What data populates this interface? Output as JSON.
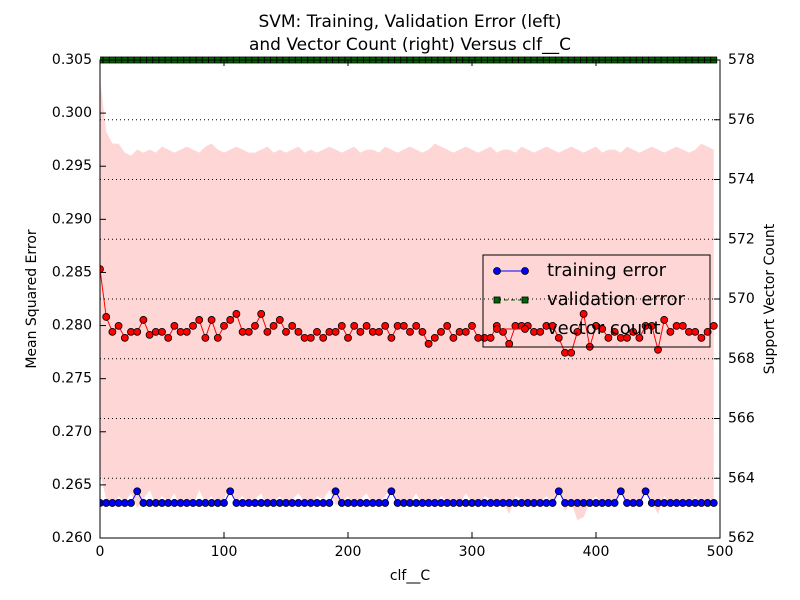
{
  "chart_data": {
    "type": "line",
    "title": [
      "SVM: Training, Validation Error (left)",
      "and Vector Count (right) Versus clf__C"
    ],
    "xlabel": "clf__C",
    "ylabel": "Mean Squared Error",
    "y2label": "Support Vector Count",
    "xlim": [
      0,
      500
    ],
    "xticks": [
      0,
      100,
      200,
      300,
      400,
      500
    ],
    "ylim": [
      0.26,
      0.305
    ],
    "yticks": [
      {
        "value": 0.26,
        "label": "0.260"
      },
      0.265,
      {
        "value": 0.27,
        "label": "0.270"
      },
      0.275,
      {
        "value": 0.28,
        "label": "0.280"
      },
      0.285,
      {
        "value": 0.29,
        "label": "0.290"
      },
      0.295,
      {
        "value": 0.3,
        "label": "0.300"
      },
      0.305
    ],
    "y2lim": [
      562,
      578
    ],
    "y2ticks": [
      562,
      564,
      566,
      568,
      570,
      572,
      574,
      576,
      578
    ],
    "grid": "y2",
    "legend": "center right",
    "x": [
      0,
      5,
      10,
      15,
      20,
      25,
      30,
      35,
      40,
      45,
      50,
      55,
      60,
      65,
      70,
      75,
      80,
      85,
      90,
      95,
      100,
      105,
      110,
      115,
      120,
      125,
      130,
      135,
      140,
      145,
      150,
      155,
      160,
      165,
      170,
      175,
      180,
      185,
      190,
      195,
      200,
      205,
      210,
      215,
      220,
      225,
      230,
      235,
      240,
      245,
      250,
      255,
      260,
      265,
      270,
      275,
      280,
      285,
      290,
      295,
      300,
      305,
      310,
      315,
      320,
      325,
      330,
      335,
      340,
      345,
      350,
      355,
      360,
      365,
      370,
      375,
      380,
      385,
      390,
      395,
      400,
      405,
      410,
      415,
      420,
      425,
      430,
      435,
      440,
      445,
      450,
      455,
      460,
      465,
      470,
      475,
      480,
      485,
      490,
      495
    ],
    "series": [
      {
        "name": "training error",
        "color": "#0000ff",
        "marker": "circle",
        "axis": "y",
        "values": [
          0.2633,
          0.2633,
          0.2633,
          0.2633,
          0.2633,
          0.2633,
          0.2644,
          0.2633,
          0.2633,
          0.2633,
          0.2633,
          0.2633,
          0.2633,
          0.2633,
          0.2633,
          0.2633,
          0.2633,
          0.2633,
          0.2633,
          0.2633,
          0.2633,
          0.2644,
          0.2633,
          0.2633,
          0.2633,
          0.2633,
          0.2633,
          0.2633,
          0.2633,
          0.2633,
          0.2633,
          0.2633,
          0.2633,
          0.2633,
          0.2633,
          0.2633,
          0.2633,
          0.2633,
          0.2644,
          0.2633,
          0.2633,
          0.2633,
          0.2633,
          0.2633,
          0.2633,
          0.2633,
          0.2633,
          0.2644,
          0.2633,
          0.2633,
          0.2633,
          0.2633,
          0.2633,
          0.2633,
          0.2633,
          0.2633,
          0.2633,
          0.2633,
          0.2633,
          0.2633,
          0.2633,
          0.2633,
          0.2633,
          0.2633,
          0.2633,
          0.2633,
          0.2633,
          0.2633,
          0.2633,
          0.2633,
          0.2633,
          0.2633,
          0.2633,
          0.2633,
          0.2644,
          0.2633,
          0.2633,
          0.2633,
          0.2633,
          0.2633,
          0.2633,
          0.2633,
          0.2633,
          0.2633,
          0.2644,
          0.2633,
          0.2633,
          0.2633,
          0.2644,
          0.2633,
          0.2633,
          0.2633,
          0.2633,
          0.2633,
          0.2633,
          0.2633,
          0.2633,
          0.2633,
          0.2633,
          0.2633
        ]
      },
      {
        "name": "validation error",
        "color": "#006400",
        "marker": "square",
        "axis": "y",
        "values": [
          0.305,
          0.305,
          0.305,
          0.305,
          0.305,
          0.305,
          0.305,
          0.305,
          0.305,
          0.305,
          0.305,
          0.305,
          0.305,
          0.305,
          0.305,
          0.305,
          0.305,
          0.305,
          0.305,
          0.305,
          0.305,
          0.305,
          0.305,
          0.305,
          0.305,
          0.305,
          0.305,
          0.305,
          0.305,
          0.305,
          0.305,
          0.305,
          0.305,
          0.305,
          0.305,
          0.305,
          0.305,
          0.305,
          0.305,
          0.305,
          0.305,
          0.305,
          0.305,
          0.305,
          0.305,
          0.305,
          0.305,
          0.305,
          0.305,
          0.305,
          0.305,
          0.305,
          0.305,
          0.305,
          0.305,
          0.305,
          0.305,
          0.305,
          0.305,
          0.305,
          0.305,
          0.305,
          0.305,
          0.305,
          0.305,
          0.305,
          0.305,
          0.305,
          0.305,
          0.305,
          0.305,
          0.305,
          0.305,
          0.305,
          0.305,
          0.305,
          0.305,
          0.305,
          0.305,
          0.305,
          0.305,
          0.305,
          0.305,
          0.305,
          0.305,
          0.305,
          0.305,
          0.305,
          0.305,
          0.305,
          0.305,
          0.305,
          0.305,
          0.305,
          0.305,
          0.305,
          0.305,
          0.305,
          0.305,
          0.305
        ]
      },
      {
        "name": "vector count",
        "color": "#ff0000",
        "marker": "circle",
        "axis": "y2",
        "band_color": "#ffd6d6",
        "values": [
          571.0,
          569.4,
          568.9,
          569.1,
          568.7,
          568.9,
          568.9,
          569.3,
          568.8,
          568.9,
          568.9,
          568.7,
          569.1,
          568.9,
          568.9,
          569.1,
          569.3,
          568.7,
          569.3,
          568.7,
          569.1,
          569.3,
          569.5,
          568.9,
          568.9,
          569.1,
          569.5,
          568.9,
          569.1,
          569.3,
          568.9,
          569.1,
          568.9,
          568.7,
          568.7,
          568.9,
          568.7,
          568.9,
          568.9,
          569.1,
          568.7,
          569.1,
          568.9,
          569.1,
          568.9,
          568.9,
          569.1,
          568.7,
          569.1,
          569.1,
          568.9,
          569.1,
          568.9,
          568.5,
          568.7,
          568.9,
          569.1,
          568.7,
          568.9,
          568.9,
          569.1,
          568.7,
          568.7,
          568.7,
          569.1,
          568.9,
          568.5,
          569.1,
          569.1,
          569.1,
          568.9,
          568.9,
          569.1,
          569.1,
          568.7,
          568.2,
          568.2,
          568.9,
          569.5,
          568.4,
          569.1,
          569.0,
          568.7,
          568.9,
          568.7,
          568.7,
          568.9,
          568.7,
          569.1,
          569.1,
          568.3,
          569.3,
          568.9,
          569.1,
          569.1,
          568.9,
          568.9,
          568.7,
          568.9,
          569.1
        ],
        "upper": [
          577.4,
          575.6,
          575.2,
          575.2,
          574.9,
          574.8,
          575.0,
          574.9,
          575.0,
          574.9,
          575.1,
          575.0,
          574.9,
          575.0,
          575.1,
          575.0,
          574.9,
          575.1,
          575.2,
          575.0,
          574.9,
          575.0,
          575.1,
          575.0,
          574.9,
          574.9,
          575.0,
          575.1,
          574.9,
          575.0,
          574.9,
          575.0,
          575.1,
          574.9,
          575.0,
          574.9,
          575.0,
          575.1,
          575.0,
          574.9,
          575.0,
          575.1,
          574.9,
          575.0,
          575.0,
          574.9,
          575.1,
          575.0,
          574.9,
          575.0,
          575.1,
          575.0,
          574.9,
          575.0,
          575.2,
          575.1,
          575.0,
          574.9,
          575.0,
          575.1,
          575.0,
          574.9,
          575.0,
          575.1,
          574.9,
          575.0,
          575.0,
          574.9,
          575.1,
          575.0,
          574.9,
          575.0,
          575.1,
          575.0,
          574.9,
          575.0,
          575.1,
          575.0,
          574.9,
          575.0,
          575.1,
          574.9,
          575.0,
          575.0,
          574.9,
          575.1,
          575.0,
          574.9,
          575.0,
          575.1,
          575.0,
          574.9,
          575.0,
          575.1,
          575.0,
          574.9,
          575.0,
          575.2,
          575.1,
          575.0
        ],
        "lower": [
          564.2,
          563.3,
          563.0,
          563.4,
          563.2,
          563.5,
          563.0,
          563.3,
          563.6,
          563.1,
          563.4,
          563.2,
          563.5,
          563.0,
          563.3,
          563.1,
          563.6,
          563.2,
          563.4,
          563.0,
          563.3,
          563.7,
          563.2,
          563.4,
          563.1,
          563.3,
          563.5,
          563.0,
          563.2,
          563.4,
          563.1,
          563.3,
          563.5,
          563.2,
          563.0,
          563.4,
          563.3,
          563.6,
          563.1,
          563.2,
          563.4,
          563.0,
          563.3,
          563.5,
          563.1,
          563.2,
          563.4,
          563.7,
          563.0,
          563.3,
          563.2,
          563.5,
          563.1,
          563.3,
          563.0,
          563.4,
          563.2,
          563.3,
          563.1,
          563.5,
          563.2,
          563.0,
          563.4,
          563.3,
          563.1,
          563.2,
          562.8,
          563.4,
          563.3,
          563.1,
          563.0,
          563.2,
          563.4,
          563.1,
          563.6,
          562.9,
          563.2,
          562.6,
          562.7,
          563.2,
          563.4,
          563.1,
          563.3,
          563.2,
          563.6,
          563.0,
          563.3,
          563.1,
          563.5,
          563.2,
          562.8,
          563.4,
          563.1,
          563.3,
          563.2,
          563.0,
          563.4,
          563.1,
          563.3,
          563.2
        ]
      }
    ]
  }
}
